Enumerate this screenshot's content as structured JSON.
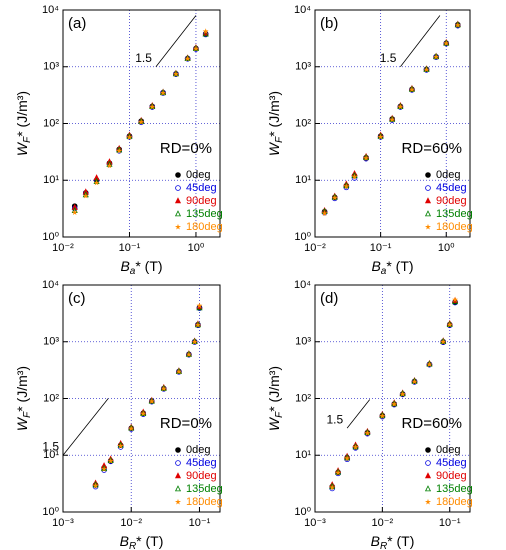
{
  "chart_data": [
    {
      "type": "scatter",
      "label": "(a)",
      "annotation": "RD=0%",
      "log": true,
      "grid": true,
      "xlabel": {
        "main": "B",
        "sub": "a",
        "rest": "* (T)"
      },
      "ylabel": {
        "main": "W",
        "sub": "F",
        "rest": "* (J/m³)"
      },
      "xlim": [
        0.01,
        2.3
      ],
      "ylim": [
        1,
        10000
      ],
      "xticks": [
        {
          "value": 0.01,
          "label": "10⁻²"
        },
        {
          "value": 0.1,
          "label": "10⁻¹"
        },
        {
          "value": 1,
          "label": "10⁰"
        }
      ],
      "yticks": [
        {
          "value": 1,
          "label": "10⁰"
        },
        {
          "value": 10,
          "label": "10¹"
        },
        {
          "value": 100,
          "label": "10²"
        },
        {
          "value": 1000,
          "label": "10³"
        },
        {
          "value": 10000,
          "label": "10⁴"
        }
      ],
      "reference_line": {
        "label": "1.5",
        "x": [
          0.25,
          1.0
        ],
        "y": [
          1000,
          8000
        ]
      },
      "x": [
        0.015,
        0.022,
        0.032,
        0.05,
        0.07,
        0.1,
        0.15,
        0.22,
        0.32,
        0.5,
        0.75,
        1.0,
        1.4
      ],
      "series": [
        {
          "name": "0deg",
          "color": "#000000",
          "marker": "circle",
          "values": [
            3.5,
            6,
            10,
            20,
            35,
            60,
            110,
            200,
            350,
            750,
            1400,
            2100,
            3800
          ]
        },
        {
          "name": "45deg",
          "color": "#0000e0",
          "marker": "open-circle",
          "values": [
            3.2,
            5.8,
            10,
            19,
            33,
            58,
            105,
            195,
            345,
            740,
            1380,
            2050,
            3700
          ]
        },
        {
          "name": "90deg",
          "color": "#e00000",
          "marker": "triangle",
          "values": [
            3.3,
            6.2,
            11,
            21,
            36,
            62,
            112,
            205,
            355,
            760,
            1420,
            2150,
            3900
          ]
        },
        {
          "name": "135deg",
          "color": "#008000",
          "marker": "open-triangle",
          "values": [
            2.9,
            5.5,
            9.5,
            19,
            34,
            59,
            108,
            198,
            348,
            745,
            1390,
            2080,
            3750
          ]
        },
        {
          "name": "180deg",
          "color": "#ff8c00",
          "marker": "star",
          "values": [
            2.7,
            5.3,
            9,
            18,
            33,
            57,
            106,
            196,
            345,
            742,
            1385,
            2070,
            4200
          ]
        }
      ]
    },
    {
      "type": "scatter",
      "label": "(b)",
      "annotation": "RD=60%",
      "log": true,
      "grid": true,
      "xlabel": {
        "main": "B",
        "sub": "a",
        "rest": "* (T)"
      },
      "ylabel": {
        "main": "W",
        "sub": "F",
        "rest": "* (J/m³)"
      },
      "xlim": [
        0.01,
        2.3
      ],
      "ylim": [
        1,
        10000
      ],
      "xticks": [
        {
          "value": 0.01,
          "label": "10⁻²"
        },
        {
          "value": 0.1,
          "label": "10⁻¹"
        },
        {
          "value": 1,
          "label": "10⁰"
        }
      ],
      "yticks": [
        {
          "value": 1,
          "label": "10⁰"
        },
        {
          "value": 10,
          "label": "10¹"
        },
        {
          "value": 100,
          "label": "10²"
        },
        {
          "value": 1000,
          "label": "10³"
        },
        {
          "value": 10000,
          "label": "10⁴"
        }
      ],
      "reference_line": {
        "label": "1.5",
        "x": [
          0.2,
          0.8
        ],
        "y": [
          1000,
          8000
        ]
      },
      "x": [
        0.014,
        0.02,
        0.03,
        0.04,
        0.06,
        0.1,
        0.15,
        0.2,
        0.3,
        0.5,
        0.7,
        1.0,
        1.5
      ],
      "series": [
        {
          "name": "0deg",
          "color": "#000000",
          "marker": "circle",
          "values": [
            2.8,
            5,
            8,
            12,
            25,
            60,
            120,
            200,
            400,
            900,
            1500,
            2600,
            5500
          ]
        },
        {
          "name": "45deg",
          "color": "#0000e0",
          "marker": "open-circle",
          "values": [
            2.7,
            4.8,
            7.5,
            11,
            24,
            58,
            115,
            195,
            390,
            880,
            1480,
            2550,
            5300
          ]
        },
        {
          "name": "90deg",
          "color": "#e00000",
          "marker": "triangle",
          "values": [
            2.9,
            5.2,
            8.5,
            13,
            26,
            62,
            122,
            205,
            410,
            910,
            1520,
            2650,
            5600
          ]
        },
        {
          "name": "135deg",
          "color": "#008000",
          "marker": "open-triangle",
          "values": [
            2.8,
            5,
            8,
            12,
            25,
            59,
            118,
            198,
            398,
            895,
            1495,
            2590,
            5450
          ]
        },
        {
          "name": "180deg",
          "color": "#ff8c00",
          "marker": "star",
          "values": [
            2.6,
            4.9,
            7.8,
            11.5,
            24.5,
            58,
            117,
            197,
            395,
            890,
            1490,
            2580,
            5400
          ]
        }
      ]
    },
    {
      "type": "scatter",
      "label": "(c)",
      "annotation": "RD=0%",
      "log": true,
      "grid": true,
      "xlabel": {
        "main": "B",
        "sub": "R",
        "rest": "* (T)"
      },
      "ylabel": {
        "main": "W",
        "sub": "F",
        "rest": "* (J/m³)"
      },
      "xlim": [
        0.001,
        0.2
      ],
      "ylim": [
        1,
        10000
      ],
      "xticks": [
        {
          "value": 0.001,
          "label": "10⁻³"
        },
        {
          "value": 0.01,
          "label": "10⁻²"
        },
        {
          "value": 0.1,
          "label": "10⁻¹"
        }
      ],
      "yticks": [
        {
          "value": 1,
          "label": "10⁰"
        },
        {
          "value": 10,
          "label": "10¹"
        },
        {
          "value": 100,
          "label": "10²"
        },
        {
          "value": 1000,
          "label": "10³"
        },
        {
          "value": 10000,
          "label": "10⁴"
        }
      ],
      "reference_line": {
        "label": "1.5",
        "x": [
          0.001,
          0.0046
        ],
        "y": [
          10,
          100
        ]
      },
      "x": [
        0.003,
        0.004,
        0.005,
        0.007,
        0.01,
        0.015,
        0.02,
        0.03,
        0.05,
        0.07,
        0.085,
        0.095,
        0.1
      ],
      "series": [
        {
          "name": "0deg",
          "color": "#000000",
          "marker": "circle",
          "values": [
            3,
            6,
            8,
            15,
            30,
            55,
            90,
            150,
            300,
            600,
            1000,
            2000,
            4000
          ]
        },
        {
          "name": "45deg",
          "color": "#0000e0",
          "marker": "open-circle",
          "values": [
            2.8,
            5.5,
            7.8,
            14,
            29,
            53,
            88,
            148,
            295,
            590,
            990,
            1950,
            3900
          ]
        },
        {
          "name": "90deg",
          "color": "#e00000",
          "marker": "triangle",
          "values": [
            3.2,
            6.5,
            8.5,
            16,
            31,
            57,
            92,
            155,
            305,
            610,
            1020,
            2050,
            4100
          ]
        },
        {
          "name": "135deg",
          "color": "#008000",
          "marker": "open-triangle",
          "values": [
            3,
            5.8,
            8,
            15,
            30,
            54,
            89,
            150,
            298,
            598,
            1000,
            1980,
            3950
          ]
        },
        {
          "name": "180deg",
          "color": "#ff8c00",
          "marker": "star",
          "values": [
            2.9,
            5.7,
            7.9,
            14.5,
            29.5,
            54,
            89,
            149,
            297,
            595,
            995,
            1970,
            4300
          ]
        }
      ]
    },
    {
      "type": "scatter",
      "label": "(d)",
      "annotation": "RD=60%",
      "log": true,
      "grid": true,
      "xlabel": {
        "main": "B",
        "sub": "R",
        "rest": "* (T)"
      },
      "ylabel": {
        "main": "W",
        "sub": "F",
        "rest": "* (J/m³)"
      },
      "xlim": [
        0.001,
        0.2
      ],
      "ylim": [
        1,
        10000
      ],
      "xticks": [
        {
          "value": 0.001,
          "label": "10⁻³"
        },
        {
          "value": 0.01,
          "label": "10⁻²"
        },
        {
          "value": 0.1,
          "label": "10⁻¹"
        }
      ],
      "yticks": [
        {
          "value": 1,
          "label": "10⁰"
        },
        {
          "value": 10,
          "label": "10¹"
        },
        {
          "value": 100,
          "label": "10²"
        },
        {
          "value": 1000,
          "label": "10³"
        },
        {
          "value": 10000,
          "label": "10⁴"
        }
      ],
      "reference_line": {
        "label": "1.5",
        "x": [
          0.003,
          0.0065
        ],
        "y": [
          30,
          96
        ]
      },
      "x": [
        0.0018,
        0.0022,
        0.003,
        0.004,
        0.006,
        0.01,
        0.015,
        0.02,
        0.03,
        0.05,
        0.08,
        0.1,
        0.12
      ],
      "series": [
        {
          "name": "0deg",
          "color": "#000000",
          "marker": "circle",
          "values": [
            2.8,
            5,
            9,
            14,
            25,
            50,
            80,
            120,
            200,
            400,
            1000,
            2000,
            5000
          ]
        },
        {
          "name": "45deg",
          "color": "#0000e0",
          "marker": "open-circle",
          "values": [
            2.6,
            4.8,
            8.5,
            13.5,
            24,
            48,
            78,
            118,
            196,
            395,
            980,
            1950,
            4900
          ]
        },
        {
          "name": "90deg",
          "color": "#e00000",
          "marker": "triangle",
          "values": [
            3,
            5.3,
            9.5,
            15,
            26,
            52,
            83,
            124,
            205,
            410,
            1030,
            2080,
            5300
          ]
        },
        {
          "name": "135deg",
          "color": "#008000",
          "marker": "open-triangle",
          "values": [
            2.8,
            5,
            9,
            14,
            25,
            50,
            80,
            121,
            201,
            402,
            1005,
            2010,
            5050
          ]
        },
        {
          "name": "180deg",
          "color": "#ff8c00",
          "marker": "star",
          "values": [
            2.7,
            4.9,
            8.8,
            13.8,
            24.5,
            49,
            79,
            119,
            198,
            398,
            995,
            1990,
            5500
          ]
        }
      ]
    }
  ]
}
